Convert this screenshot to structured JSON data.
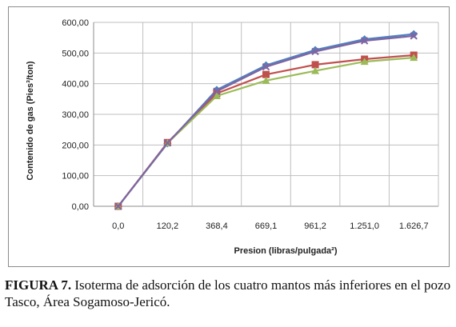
{
  "chart_data": {
    "type": "line",
    "categories": [
      "0,0",
      "120,2",
      "368,4",
      "669,1",
      "961,2",
      "1.251,0",
      "1.626,7"
    ],
    "ylabel": "Contenido de gas (Pies³/ton)",
    "xlabel": "Presion (libras/pulgada²)",
    "ylim": [
      0,
      600
    ],
    "yticks": [
      "0,00",
      "100,00",
      "200,00",
      "300,00",
      "400,00",
      "500,00",
      "600,00"
    ],
    "grid": true,
    "series": [
      {
        "color": "#4f81bd",
        "marker": "diamond",
        "values": [
          0,
          205,
          380,
          460,
          510,
          545,
          562
        ]
      },
      {
        "color": "#c0504d",
        "marker": "square",
        "values": [
          0,
          208,
          368,
          430,
          462,
          480,
          493
        ]
      },
      {
        "color": "#9bbb59",
        "marker": "triangle",
        "values": [
          0,
          206,
          360,
          410,
          442,
          472,
          485
        ]
      },
      {
        "color": "#8064a2",
        "marker": "x",
        "values": [
          0,
          207,
          375,
          455,
          505,
          540,
          556
        ]
      }
    ]
  },
  "caption": {
    "label": "FIGURA 7.",
    "text": " Isoterma de adsorción de los cuatro mantos más inferiores en el pozo Tasco, Área Sogamoso-Jericó."
  }
}
